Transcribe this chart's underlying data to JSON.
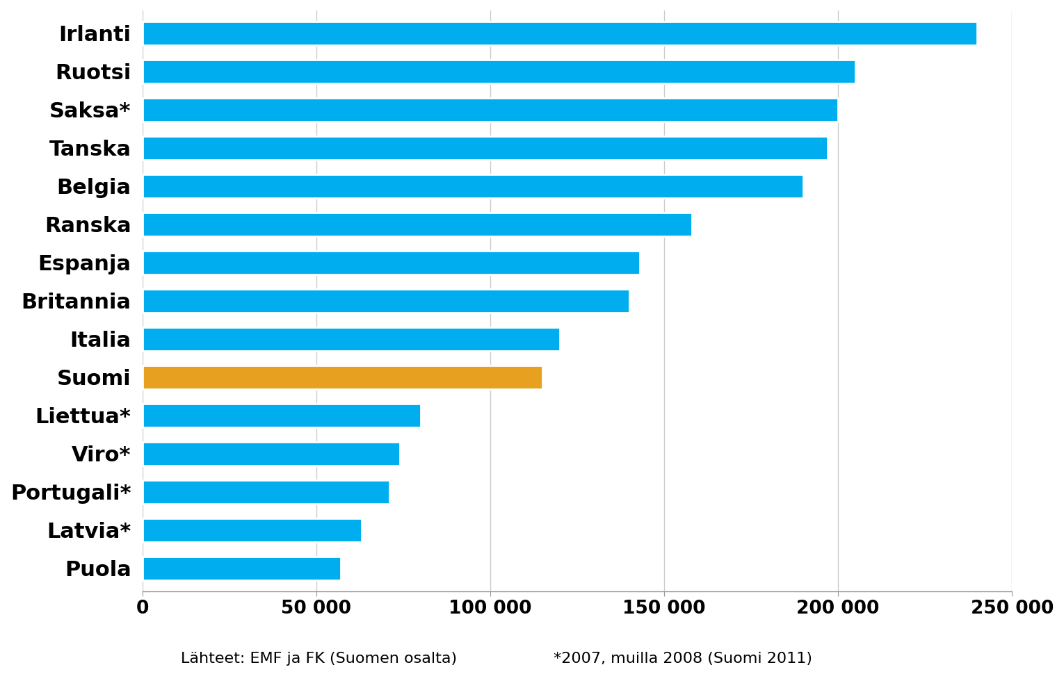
{
  "categories": [
    "Irlanti",
    "Ruotsi",
    "Saksa*",
    "Tanska",
    "Belgia",
    "Ranska",
    "Espanja",
    "Britannia",
    "Italia",
    "Suomi",
    "Liettua*",
    "Viro*",
    "Portugali*",
    "Latvia*",
    "Puola"
  ],
  "values": [
    240000,
    205000,
    200000,
    197000,
    190000,
    158000,
    143000,
    140000,
    120000,
    115000,
    80000,
    74000,
    71000,
    63000,
    57000
  ],
  "bar_colors": [
    "#00AEEF",
    "#00AEEF",
    "#00AEEF",
    "#00AEEF",
    "#00AEEF",
    "#00AEEF",
    "#00AEEF",
    "#00AEEF",
    "#00AEEF",
    "#E8A020",
    "#00AEEF",
    "#00AEEF",
    "#00AEEF",
    "#00AEEF",
    "#00AEEF"
  ],
  "xlabel_note1": "Lähteet: EMF ja FK (Suomen osalta)",
  "xlabel_note2": "*2007, muilla 2008 (Suomi 2011)",
  "xlim": [
    0,
    250000
  ],
  "xticks": [
    0,
    50000,
    100000,
    150000,
    200000,
    250000
  ],
  "xtick_labels": [
    "0",
    "50 000",
    "100 000",
    "150 000",
    "200 000",
    "250 000"
  ],
  "background_color": "#FFFFFF",
  "grid_color": "#CCCCCC",
  "label_fontsize": 22,
  "tick_fontsize": 19,
  "note_fontsize": 16,
  "bar_height": 0.62
}
